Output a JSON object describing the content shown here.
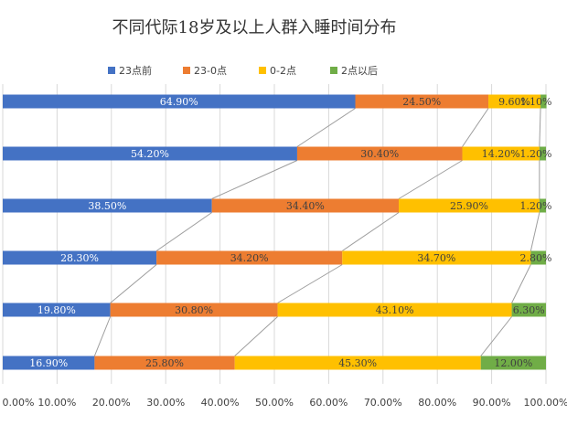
{
  "chart_data": {
    "type": "bar",
    "orientation": "horizontal",
    "stacked": "percent",
    "title": "不同代际18岁及以上人群入睡时间分布",
    "categories": [
      "",
      "",
      "",
      "",
      "",
      ""
    ],
    "series": [
      {
        "name": "23点前",
        "color": "#4472C4",
        "values": [
          64.9,
          54.2,
          38.5,
          28.3,
          19.8,
          16.9
        ],
        "labels": [
          "64.90%",
          "54.20%",
          "38.50%",
          "28.30%",
          "19.80%",
          "16.90%"
        ]
      },
      {
        "name": "23-0点",
        "color": "#ED7D31",
        "values": [
          24.5,
          30.4,
          34.4,
          34.2,
          30.8,
          25.8
        ],
        "labels": [
          "24.50%",
          "30.40%",
          "34.40%",
          "34.20%",
          "30.80%",
          "25.80%"
        ]
      },
      {
        "name": "0-2点",
        "color": "#FFC000",
        "values": [
          9.6,
          14.2,
          25.9,
          34.7,
          43.1,
          45.3
        ],
        "labels": [
          "9.60%",
          "14.20%",
          "25.90%",
          "34.70%",
          "43.10%",
          "45.30%"
        ]
      },
      {
        "name": "2点以后",
        "color": "#70AD47",
        "values": [
          1.1,
          1.2,
          1.2,
          2.8,
          6.3,
          12.0
        ],
        "labels": [
          "1.10%",
          "1.20%",
          "1.20%",
          "2.80%",
          "6.30%",
          "12.00%"
        ]
      }
    ],
    "xlim": [
      0,
      100
    ],
    "xticks": [
      "0.00%",
      "10.00%",
      "20.00%",
      "30.00%",
      "40.00%",
      "50.00%",
      "60.00%",
      "70.00%",
      "80.00%",
      "90.00%",
      "100.00%"
    ],
    "legend": "top",
    "grid": true,
    "series_lines": true
  }
}
